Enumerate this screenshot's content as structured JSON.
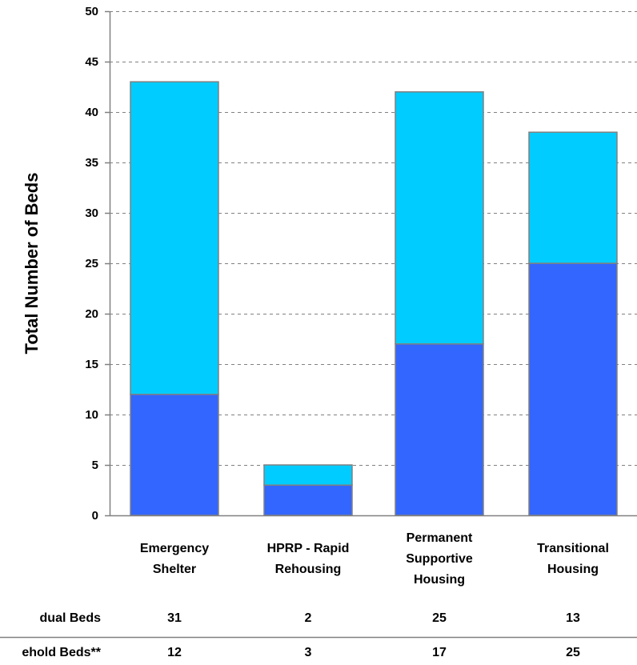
{
  "chart_data": {
    "type": "bar",
    "stacked": true,
    "categories": [
      [
        "Emergency",
        "Shelter"
      ],
      [
        "HPRP - Rapid",
        "Rehousing"
      ],
      [
        "Permanent",
        "Supportive",
        "Housing"
      ],
      [
        "Transitional",
        "Housing"
      ]
    ],
    "series": [
      {
        "values": [
          12,
          3,
          17,
          25
        ],
        "color": "#3366FF"
      },
      {
        "values": [
          31,
          2,
          25,
          13
        ],
        "color": "#00CCFF"
      }
    ],
    "title": "",
    "xlabel": "",
    "ylabel": "Total Number of Beds",
    "ylim": [
      0,
      50
    ],
    "ytick_step": 5,
    "yticks": [
      "0",
      "5",
      "10",
      "15",
      "20",
      "25",
      "30",
      "35",
      "40",
      "45",
      "50"
    ],
    "grid": true,
    "grid_style": "dashed",
    "table": {
      "rows": [
        {
          "label": "dual Beds",
          "values": [
            "31",
            "2",
            "25",
            "13"
          ]
        },
        {
          "label": "ehold Beds**",
          "values": [
            "12",
            "3",
            "17",
            "25"
          ]
        }
      ]
    },
    "colors": {
      "bar_border": "#808080",
      "axis": "#808080",
      "grid": "#808080",
      "table_line": "#808080"
    }
  }
}
